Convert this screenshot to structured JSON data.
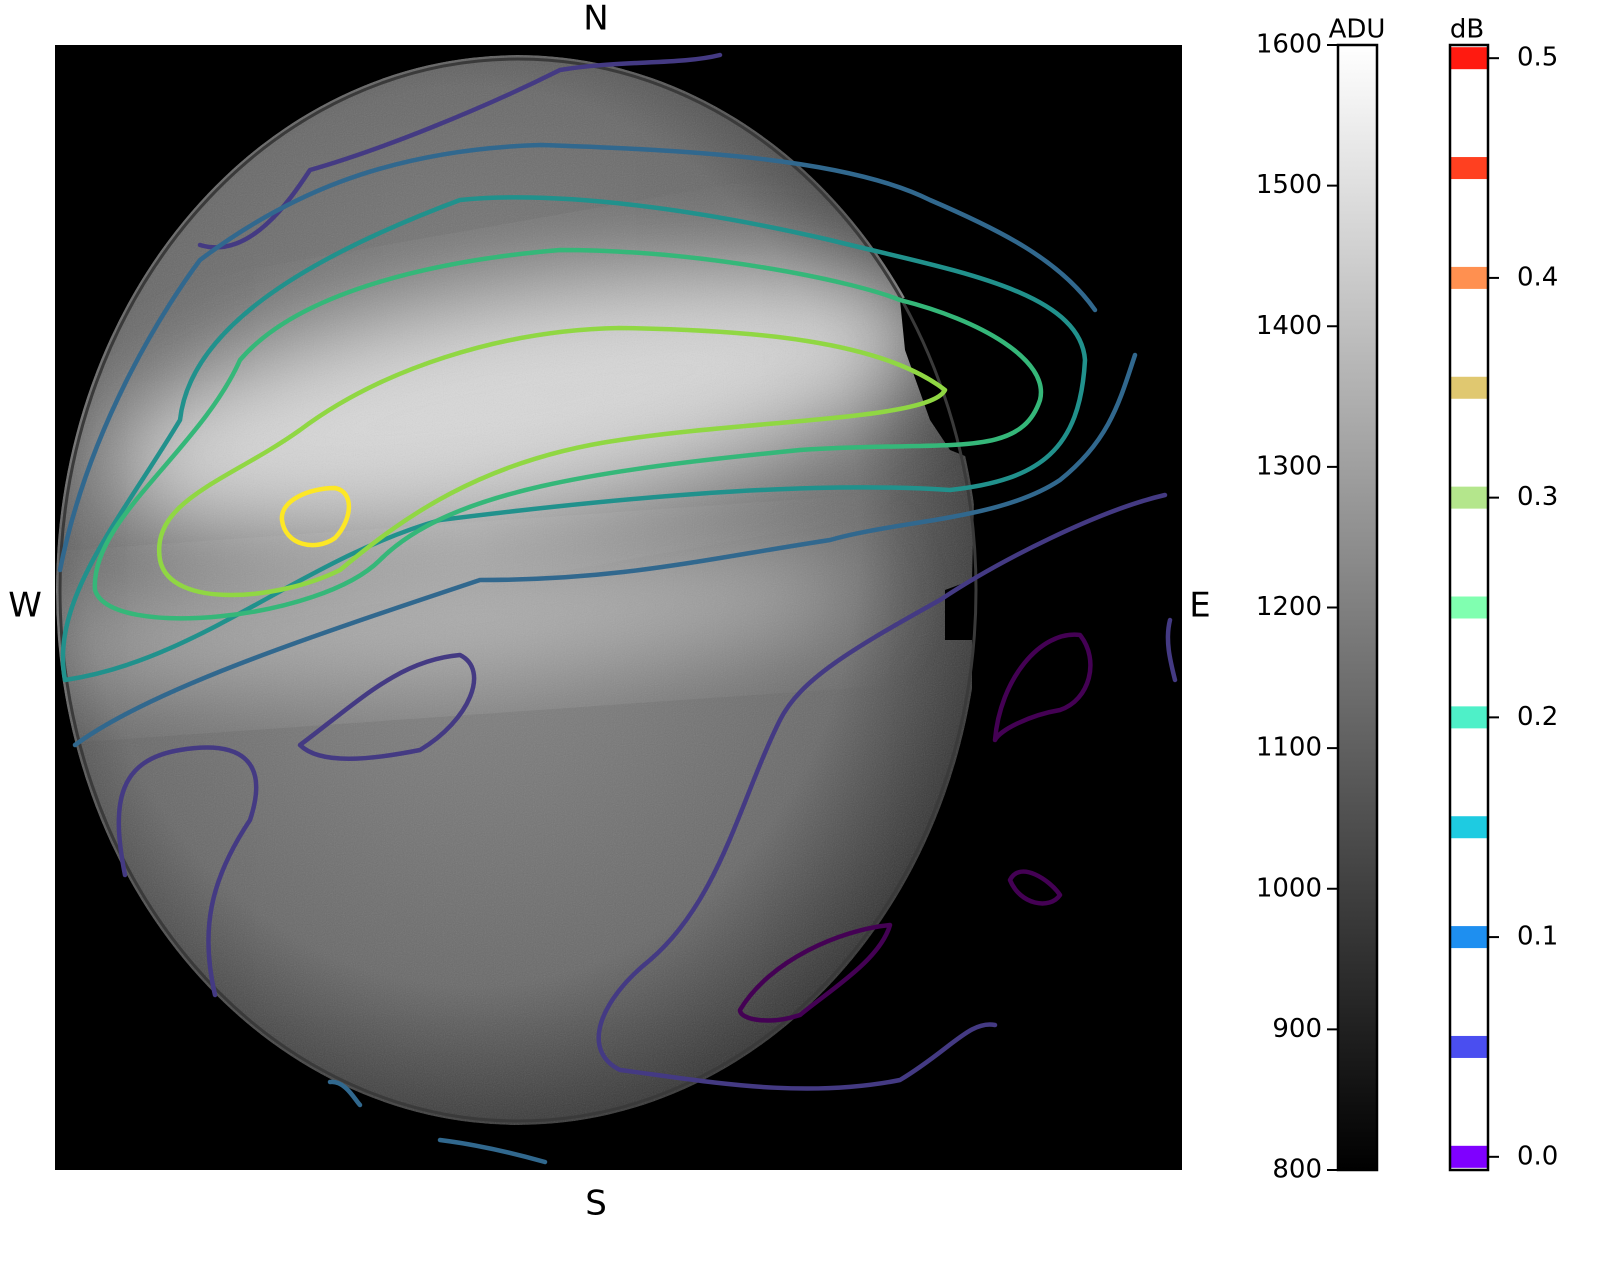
{
  "chart_data": {
    "type": "image",
    "directions": {
      "top": "N",
      "bottom": "S",
      "left": "W",
      "right": "E"
    },
    "contours": {
      "levels": [
        0,
        0.05,
        0.1,
        0.15,
        0.2,
        0.25,
        0.3
      ],
      "colors": [
        "#440154",
        "#443a83",
        "#31688e",
        "#21918c",
        "#35b779",
        "#90d743",
        "#fde725"
      ]
    },
    "colorbars": [
      {
        "title": "ADU",
        "ylim": [
          800,
          1600
        ],
        "yticks": [
          800,
          900,
          1000,
          1100,
          1200,
          1300,
          1400,
          1500,
          1600
        ],
        "colors": [
          "#000000",
          "#ffffff"
        ]
      },
      {
        "title": "dB",
        "ylim": [
          -0.006,
          0.506
        ],
        "yticks": [
          {
            "value": 0,
            "label": "0.0"
          },
          0.1,
          0.2,
          0.3,
          0.4,
          0.5
        ],
        "bands": {
          "values": [
            0,
            0.05,
            0.1,
            0.15,
            0.2,
            0.25,
            0.3,
            0.35,
            0.4,
            0.45,
            0.5
          ],
          "colors": [
            "#7f00ff",
            "#4a4ef0",
            "#1e8ff0",
            "#1ecbe1",
            "#4ef0c8",
            "#80ffb0",
            "#b4e68c",
            "#e0c870",
            "#ff9050",
            "#ff4020",
            "#ff1a10"
          ]
        }
      }
    ]
  }
}
